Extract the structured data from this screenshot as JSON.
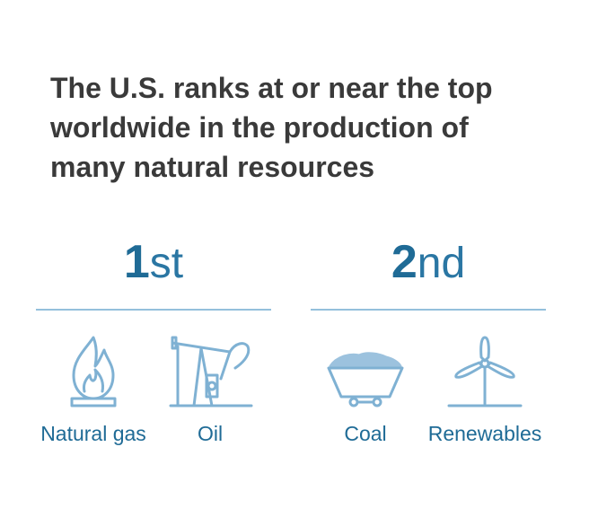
{
  "headline": {
    "line1": "The U.S. ranks at or near the top",
    "line2": "worldwide in the production of",
    "line3": "many natural resources"
  },
  "groups": [
    {
      "rank_number": "1",
      "rank_suffix": "st",
      "items": [
        {
          "label": "Natural gas",
          "icon": "flame-icon"
        },
        {
          "label": "Oil",
          "icon": "pumpjack-icon"
        }
      ]
    },
    {
      "rank_number": "2",
      "rank_suffix": "nd",
      "items": [
        {
          "label": "Coal",
          "icon": "coal-cart-icon"
        },
        {
          "label": "Renewables",
          "icon": "wind-turbine-icon"
        }
      ]
    }
  ],
  "colors": {
    "headline": "#3a3a3a",
    "accent": "#1f6b96",
    "icon_stroke": "#7fb1d3",
    "divider": "#94c0dc"
  }
}
